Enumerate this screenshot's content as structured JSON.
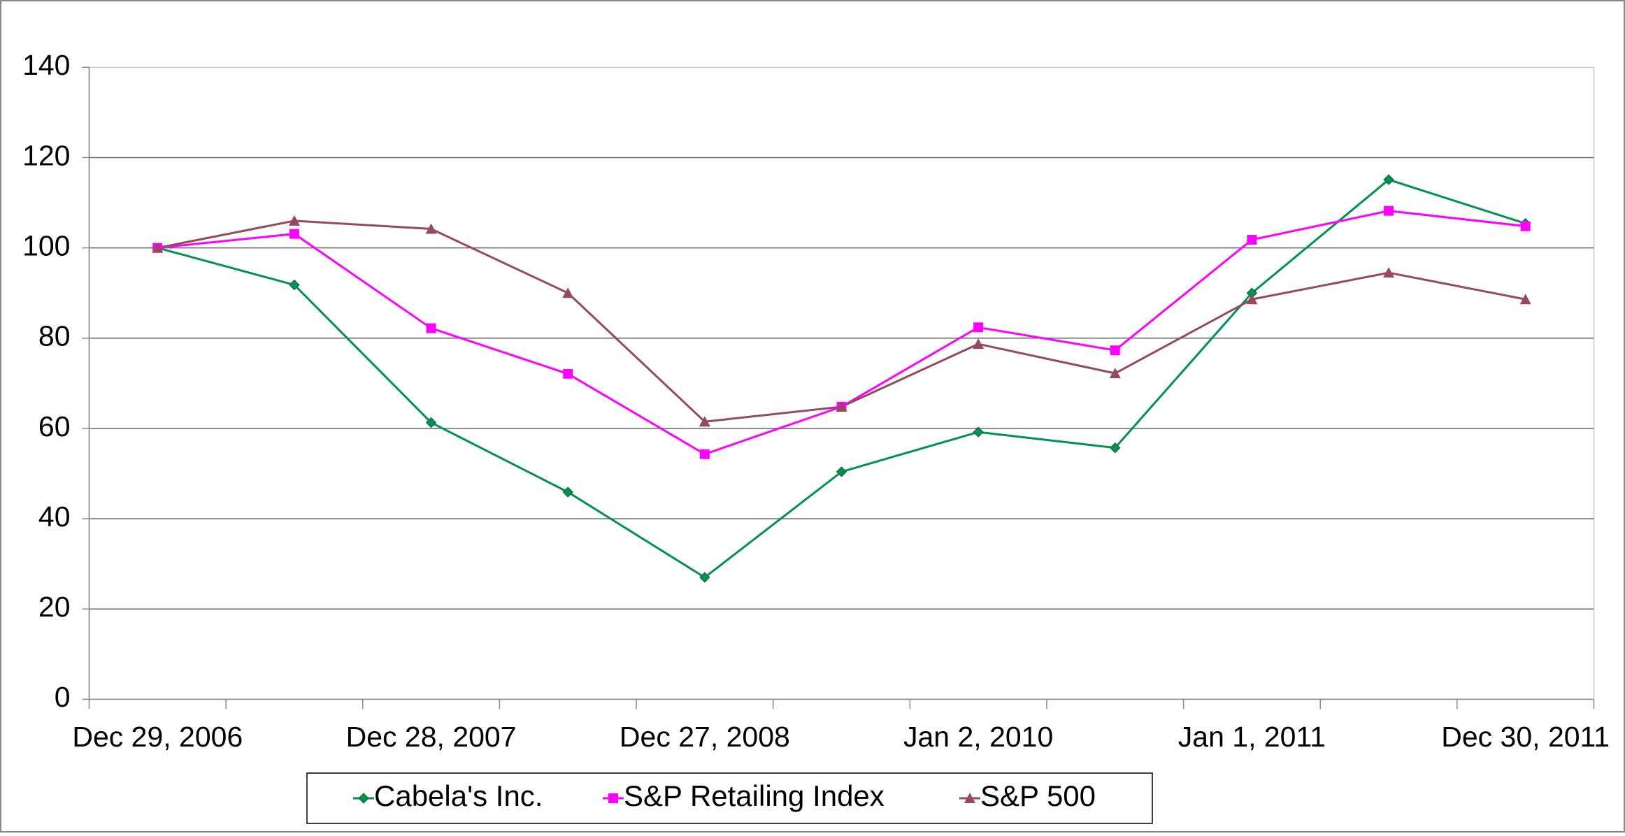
{
  "chart_data": {
    "type": "line",
    "categories": [
      "Dec 29, 2006",
      null,
      "Dec 28, 2007",
      null,
      "Dec 27, 2008",
      null,
      "Jan 2, 2010",
      null,
      "Jan 1, 2011",
      null,
      "Dec 30, 2011"
    ],
    "series": [
      {
        "name": "Cabela's Inc.",
        "color": "#00924f",
        "marker": "diamond",
        "values": [
          100,
          91.8,
          61.3,
          45.9,
          27.0,
          50.4,
          59.2,
          55.7,
          90.0,
          115.1,
          105.4
        ]
      },
      {
        "name": "S&P Retailing Index",
        "color": "#ff00ff",
        "marker": "square",
        "values": [
          100,
          103.1,
          82.2,
          72.1,
          54.3,
          64.8,
          82.4,
          77.3,
          101.8,
          108.2,
          104.8
        ]
      },
      {
        "name": "S&P 500",
        "color": "#954a5e",
        "marker": "triangle",
        "values": [
          100,
          106.0,
          104.2,
          90.0,
          61.5,
          64.8,
          78.7,
          72.2,
          88.6,
          94.5,
          88.6
        ]
      }
    ],
    "ylim": [
      0,
      140
    ],
    "yticks": [
      0,
      20,
      40,
      60,
      80,
      100,
      120,
      140
    ],
    "grid": true,
    "legend": "bottom"
  }
}
